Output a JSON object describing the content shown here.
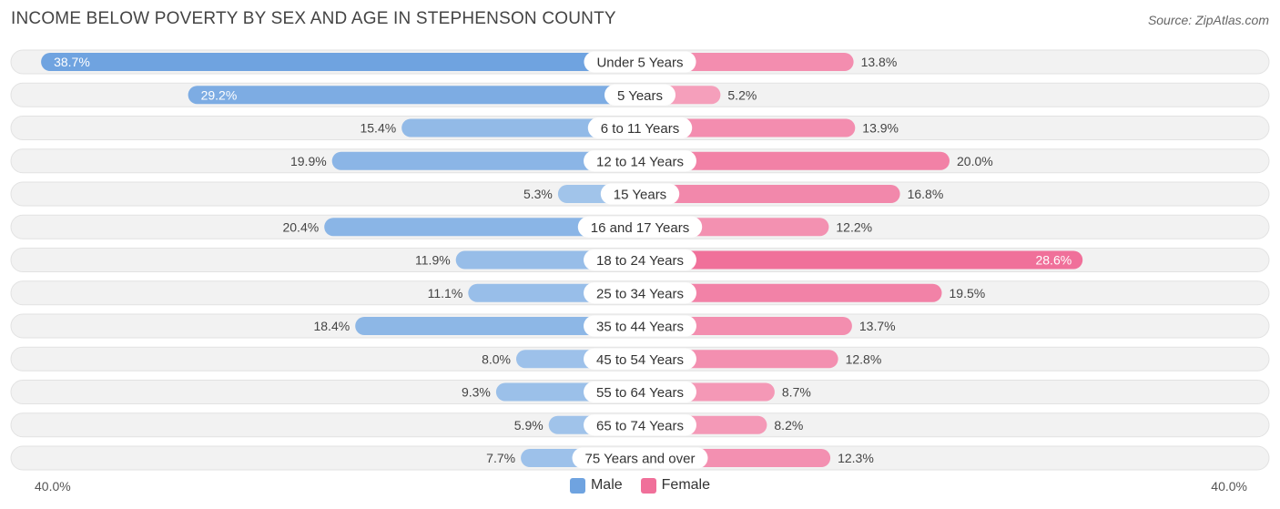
{
  "title": "INCOME BELOW POVERTY BY SEX AND AGE IN STEPHENSON COUNTY",
  "source": "Source: ZipAtlas.com",
  "colors": {
    "male": "#6fa3e0",
    "male_light": "#a9c9ec",
    "female": "#f0709a",
    "female_light": "#f6a9c2",
    "track": "#eeeeee"
  },
  "chart_data": {
    "type": "bar",
    "orientation": "horizontal-diverging",
    "title": "INCOME BELOW POVERTY BY SEX AND AGE IN STEPHENSON COUNTY",
    "categories": [
      "Under 5 Years",
      "5 Years",
      "6 to 11 Years",
      "12 to 14 Years",
      "15 Years",
      "16 and 17 Years",
      "18 to 24 Years",
      "25 to 34 Years",
      "35 to 44 Years",
      "45 to 54 Years",
      "55 to 64 Years",
      "65 to 74 Years",
      "75 Years and over"
    ],
    "series": [
      {
        "name": "Male",
        "values": [
          38.7,
          29.2,
          15.4,
          19.9,
          5.3,
          20.4,
          11.9,
          11.1,
          18.4,
          8.0,
          9.3,
          5.9,
          7.7
        ]
      },
      {
        "name": "Female",
        "values": [
          13.8,
          5.2,
          13.9,
          20.0,
          16.8,
          12.2,
          28.6,
          19.5,
          13.7,
          12.8,
          8.7,
          8.2,
          12.3
        ]
      }
    ],
    "value_labels": {
      "male": [
        "38.7%",
        "29.2%",
        "15.4%",
        "19.9%",
        "5.3%",
        "20.4%",
        "11.9%",
        "11.1%",
        "18.4%",
        "8.0%",
        "9.3%",
        "5.9%",
        "7.7%"
      ],
      "female": [
        "13.8%",
        "5.2%",
        "13.9%",
        "20.0%",
        "16.8%",
        "12.2%",
        "28.6%",
        "19.5%",
        "13.7%",
        "12.8%",
        "8.7%",
        "8.2%",
        "12.3%"
      ]
    },
    "xlim": [
      -40,
      40
    ],
    "axis_labels": {
      "left": "40.0%",
      "right": "40.0%"
    },
    "legend": {
      "position": "bottom-center",
      "entries": [
        "Male",
        "Female"
      ]
    }
  }
}
